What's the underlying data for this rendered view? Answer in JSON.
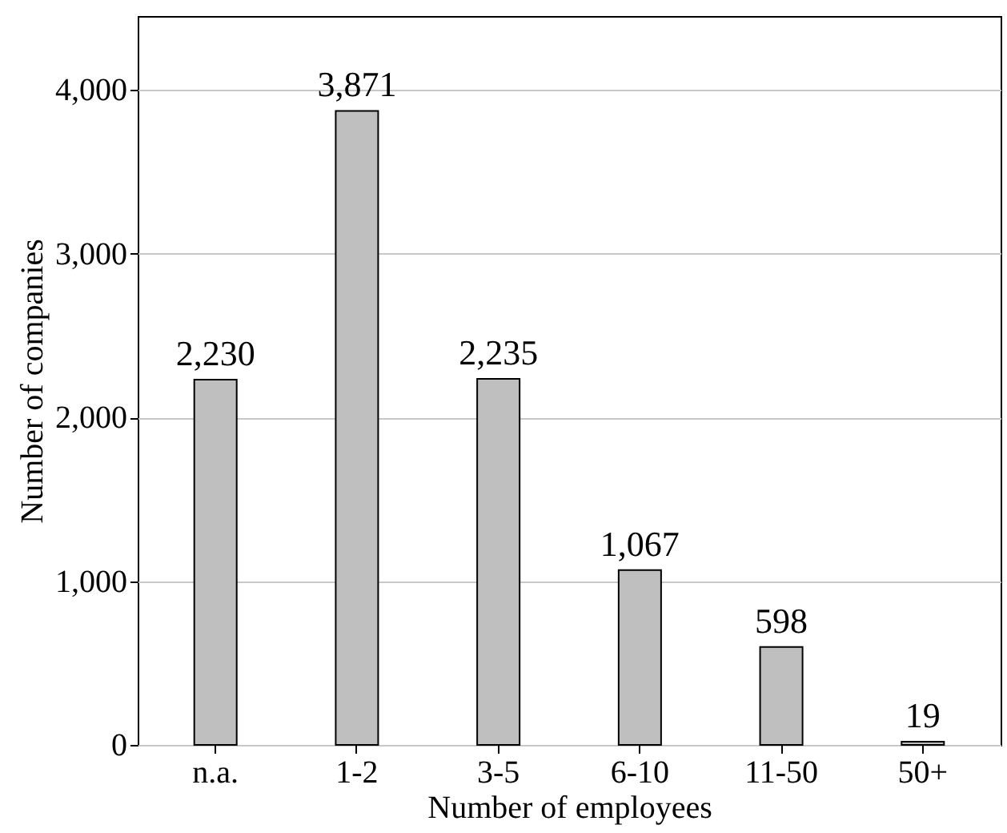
{
  "chart_data": {
    "type": "bar",
    "xlabel": "Number of employees",
    "ylabel": "Number of companies",
    "categories": [
      "n.a.",
      "1-2",
      "3-5",
      "6-10",
      "11-50",
      "50+"
    ],
    "values": [
      2230,
      3871,
      2235,
      1067,
      598,
      19
    ],
    "value_labels": [
      "2,230",
      "3,871",
      "2,235",
      "1,067",
      "598",
      "19"
    ],
    "color": "#bfbfbf",
    "ylim": [
      0,
      4450
    ],
    "yticks": [
      0,
      {
        "value": 1000,
        "label": "1,000"
      },
      {
        "value": 2000,
        "label": "2,000"
      },
      {
        "value": 3000,
        "label": "3,000"
      },
      {
        "value": 4000,
        "label": "4,000"
      }
    ],
    "grid": "y"
  }
}
